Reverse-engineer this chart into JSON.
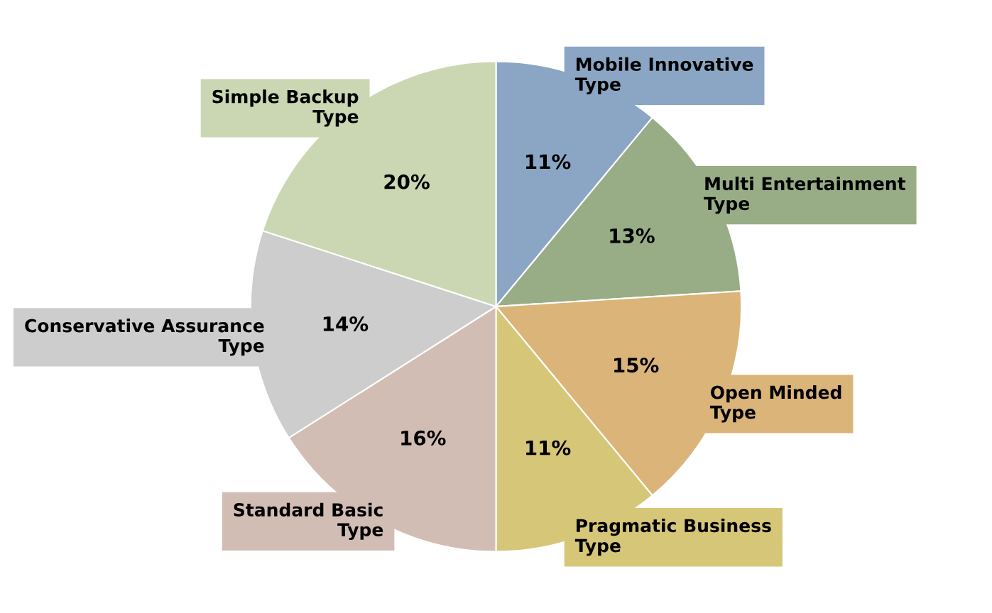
{
  "chart_data": {
    "type": "pie",
    "categories": [
      "Mobile Innovative Type",
      "Multi Entertainment Type",
      "Open Minded Type",
      "Pragmatic Business Type",
      "Standard Basic Type",
      "Conservative Assurance Type",
      "Simple Backup Type"
    ],
    "values": [
      11,
      13,
      15,
      11,
      16,
      14,
      20
    ],
    "value_labels": [
      "11%",
      "13%",
      "15%",
      "11%",
      "16%",
      "14%",
      "20%"
    ],
    "colors": [
      "#8aa6c4",
      "#98ad86",
      "#dbb47a",
      "#d6c678",
      "#d2bdb4",
      "#cdcdcd",
      "#cbd7b2"
    ],
    "legend": false
  }
}
